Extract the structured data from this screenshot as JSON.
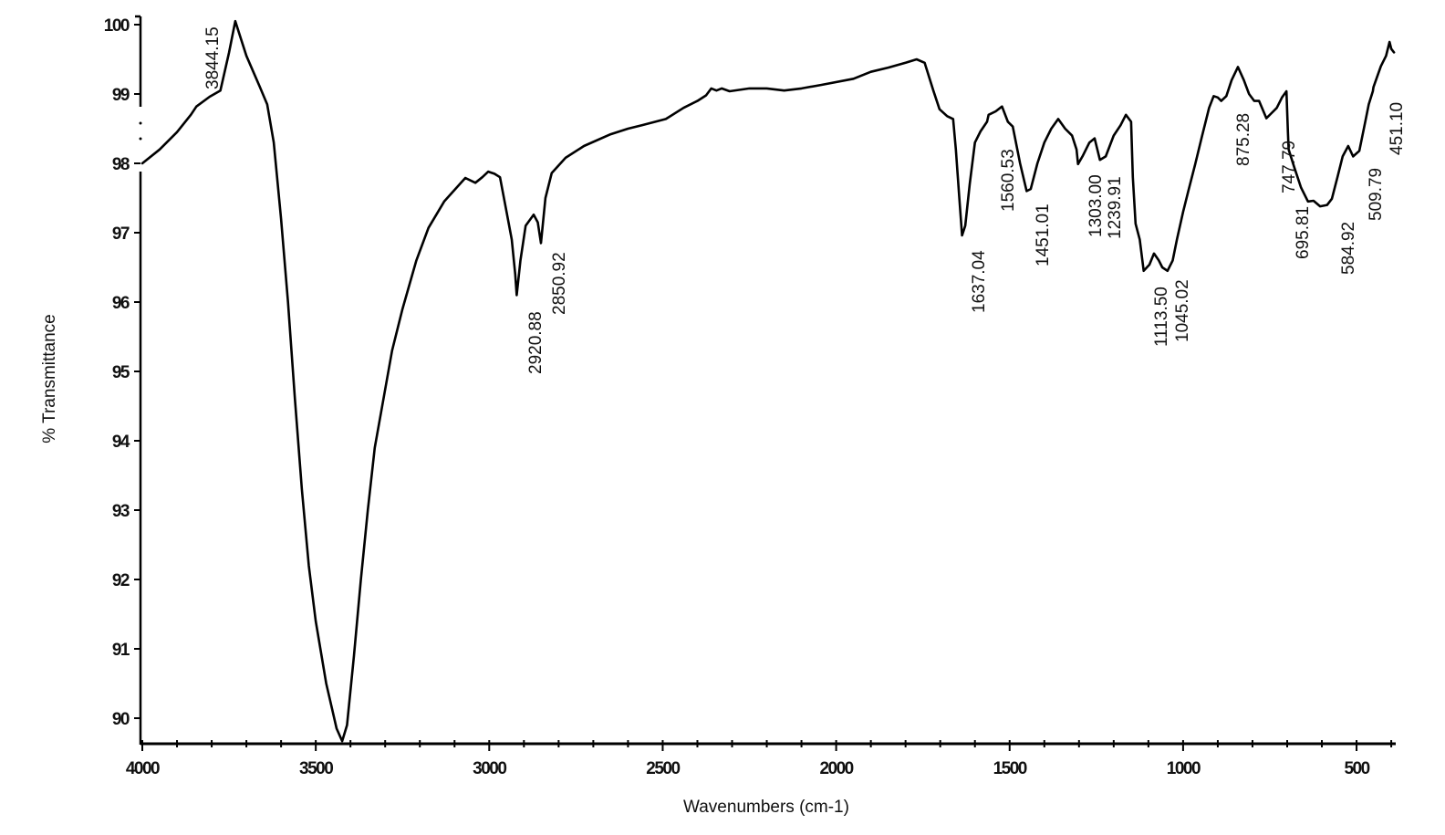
{
  "chart_data": {
    "type": "line",
    "title": "",
    "xlabel": "Wavenumbers (cm-1)",
    "ylabel": "% Transmittance",
    "xlim": [
      4000,
      392
    ],
    "ylim": [
      89.63,
      100.1
    ],
    "x_reversed": true,
    "grid": false,
    "legend": null,
    "x_ticks": [
      4000,
      3500,
      3000,
      2500,
      2000,
      1500,
      1000,
      500
    ],
    "y_ticks": [
      90,
      91,
      92,
      93,
      94,
      95,
      96,
      97,
      98,
      99,
      100
    ],
    "series": [
      {
        "name": "IR spectrum",
        "color": "#000000",
        "points": [
          [
            4000,
            98.0
          ],
          [
            3950,
            98.2
          ],
          [
            3900,
            98.45
          ],
          [
            3860,
            98.7
          ],
          [
            3844.15,
            98.82
          ],
          [
            3806,
            98.96
          ],
          [
            3775,
            99.05
          ],
          [
            3750,
            99.6
          ],
          [
            3732,
            100.05
          ],
          [
            3700,
            99.55
          ],
          [
            3661,
            99.1
          ],
          [
            3640,
            98.85
          ],
          [
            3621,
            98.3
          ],
          [
            3600,
            97.2
          ],
          [
            3580,
            96.0
          ],
          [
            3560,
            94.6
          ],
          [
            3540,
            93.3
          ],
          [
            3520,
            92.2
          ],
          [
            3500,
            91.4
          ],
          [
            3470,
            90.5
          ],
          [
            3440,
            89.85
          ],
          [
            3424,
            89.67
          ],
          [
            3410,
            89.9
          ],
          [
            3390,
            90.9
          ],
          [
            3370,
            92.0
          ],
          [
            3350,
            93.0
          ],
          [
            3330,
            93.9
          ],
          [
            3306,
            94.57
          ],
          [
            3280,
            95.3
          ],
          [
            3250,
            95.9
          ],
          [
            3210,
            96.6
          ],
          [
            3175,
            97.07
          ],
          [
            3130,
            97.45
          ],
          [
            3069,
            97.79
          ],
          [
            3040,
            97.72
          ],
          [
            3020,
            97.8
          ],
          [
            3003,
            97.88
          ],
          [
            2985,
            97.85
          ],
          [
            2969,
            97.8
          ],
          [
            2950,
            97.3
          ],
          [
            2935,
            96.9
          ],
          [
            2925,
            96.4
          ],
          [
            2920.88,
            96.1
          ],
          [
            2910,
            96.6
          ],
          [
            2895,
            97.1
          ],
          [
            2872,
            97.26
          ],
          [
            2860,
            97.15
          ],
          [
            2850.92,
            96.85
          ],
          [
            2838,
            97.5
          ],
          [
            2820,
            97.86
          ],
          [
            2780,
            98.08
          ],
          [
            2727,
            98.25
          ],
          [
            2650,
            98.42
          ],
          [
            2600,
            98.5
          ],
          [
            2560,
            98.55
          ],
          [
            2491,
            98.64
          ],
          [
            2440,
            98.8
          ],
          [
            2400,
            98.9
          ],
          [
            2375,
            98.98
          ],
          [
            2360,
            99.08
          ],
          [
            2345,
            99.05
          ],
          [
            2330,
            99.08
          ],
          [
            2307,
            99.04
          ],
          [
            2250,
            99.08
          ],
          [
            2200,
            99.08
          ],
          [
            2150,
            99.05
          ],
          [
            2100,
            99.08
          ],
          [
            2044,
            99.13
          ],
          [
            1950,
            99.22
          ],
          [
            1900,
            99.32
          ],
          [
            1850,
            99.38
          ],
          [
            1800,
            99.45
          ],
          [
            1768,
            99.5
          ],
          [
            1745,
            99.45
          ],
          [
            1720,
            99.05
          ],
          [
            1702,
            98.78
          ],
          [
            1680,
            98.68
          ],
          [
            1663,
            98.64
          ],
          [
            1655,
            98.2
          ],
          [
            1645,
            97.5
          ],
          [
            1637.04,
            96.96
          ],
          [
            1628,
            97.1
          ],
          [
            1615,
            97.7
          ],
          [
            1600,
            98.3
          ],
          [
            1584,
            98.46
          ],
          [
            1565,
            98.6
          ],
          [
            1560.53,
            98.7
          ],
          [
            1540,
            98.75
          ],
          [
            1522,
            98.82
          ],
          [
            1505,
            98.6
          ],
          [
            1491,
            98.53
          ],
          [
            1470,
            98.0
          ],
          [
            1451.01,
            97.6
          ],
          [
            1439,
            97.63
          ],
          [
            1420,
            98.0
          ],
          [
            1400,
            98.3
          ],
          [
            1380,
            98.5
          ],
          [
            1360,
            98.64
          ],
          [
            1340,
            98.5
          ],
          [
            1320,
            98.4
          ],
          [
            1307,
            98.2
          ],
          [
            1303.0,
            97.99
          ],
          [
            1290,
            98.1
          ],
          [
            1270,
            98.3
          ],
          [
            1255,
            98.36
          ],
          [
            1239.91,
            98.05
          ],
          [
            1223,
            98.1
          ],
          [
            1200,
            98.4
          ],
          [
            1180,
            98.55
          ],
          [
            1165,
            98.7
          ],
          [
            1150,
            98.6
          ],
          [
            1145,
            97.8
          ],
          [
            1137,
            97.13
          ],
          [
            1125,
            96.9
          ],
          [
            1113.5,
            96.45
          ],
          [
            1097,
            96.54
          ],
          [
            1084,
            96.7
          ],
          [
            1070,
            96.6
          ],
          [
            1060,
            96.5
          ],
          [
            1045.02,
            96.45
          ],
          [
            1030,
            96.6
          ],
          [
            1018,
            96.9
          ],
          [
            1000,
            97.3
          ],
          [
            985,
            97.6
          ],
          [
            965,
            97.99
          ],
          [
            945,
            98.4
          ],
          [
            925,
            98.8
          ],
          [
            912,
            98.97
          ],
          [
            900,
            98.95
          ],
          [
            890,
            98.9
          ],
          [
            875.28,
            98.97
          ],
          [
            860,
            99.2
          ],
          [
            842,
            99.39
          ],
          [
            825,
            99.2
          ],
          [
            810,
            99.0
          ],
          [
            795,
            98.9
          ],
          [
            781,
            98.9
          ],
          [
            760,
            98.65
          ],
          [
            747.79,
            98.71
          ],
          [
            730,
            98.8
          ],
          [
            715,
            98.95
          ],
          [
            702,
            99.04
          ],
          [
            698,
            98.45
          ],
          [
            695.81,
            98.2
          ],
          [
            680,
            97.95
          ],
          [
            660,
            97.65
          ],
          [
            640,
            97.45
          ],
          [
            624,
            97.46
          ],
          [
            605,
            97.38
          ],
          [
            584.92,
            97.4
          ],
          [
            571,
            97.49
          ],
          [
            555,
            97.8
          ],
          [
            540,
            98.1
          ],
          [
            524,
            98.25
          ],
          [
            509.79,
            98.1
          ],
          [
            492,
            98.18
          ],
          [
            475,
            98.6
          ],
          [
            465,
            98.85
          ],
          [
            453,
            99.04
          ],
          [
            451.1,
            99.1
          ],
          [
            430,
            99.4
          ],
          [
            415,
            99.55
          ],
          [
            405,
            99.75
          ],
          [
            400,
            99.65
          ],
          [
            392,
            99.6
          ]
        ]
      }
    ],
    "annotations": [
      {
        "label": "3844.15",
        "x": 3844.15
      },
      {
        "label": "2920.88",
        "x": 2920.88
      },
      {
        "label": "2850.92",
        "x": 2850.92
      },
      {
        "label": "1637.04",
        "x": 1637.04
      },
      {
        "label": "1560.53",
        "x": 1560.53
      },
      {
        "label": "1451.01",
        "x": 1451.01
      },
      {
        "label": "1303.00",
        "x": 1303.0
      },
      {
        "label": "1239.91",
        "x": 1239.91
      },
      {
        "label": "1113.50",
        "x": 1113.5
      },
      {
        "label": "1045.02",
        "x": 1045.02
      },
      {
        "label": "875.28",
        "x": 875.28
      },
      {
        "label": "747.79",
        "x": 747.79
      },
      {
        "label": "695.81",
        "x": 695.81
      },
      {
        "label": "584.92",
        "x": 584.92
      },
      {
        "label": "509.79",
        "x": 509.79
      },
      {
        "label": "451.10",
        "x": 451.1
      }
    ]
  },
  "labels": {
    "x_axis_title": "Wavenumbers (cm-1)",
    "y_axis_title": "% Transmittance",
    "x_tick_labels": [
      "4000",
      "3500",
      "3000",
      "2500",
      "2000",
      "1500",
      "1000",
      "500"
    ],
    "y_tick_labels": [
      "100",
      "99",
      "98",
      "97",
      "96",
      "95",
      "94",
      "93",
      "92",
      "91",
      "90"
    ],
    "peaks": [
      "3844.15",
      "2920.88",
      "2850.92",
      "1637.04",
      "1560.53",
      "1451.01",
      "1303.00",
      "1239.91",
      "1113.50",
      "1045.02",
      "875.28",
      "747.79",
      "695.81",
      "584.92",
      "509.79",
      "451.10"
    ]
  }
}
